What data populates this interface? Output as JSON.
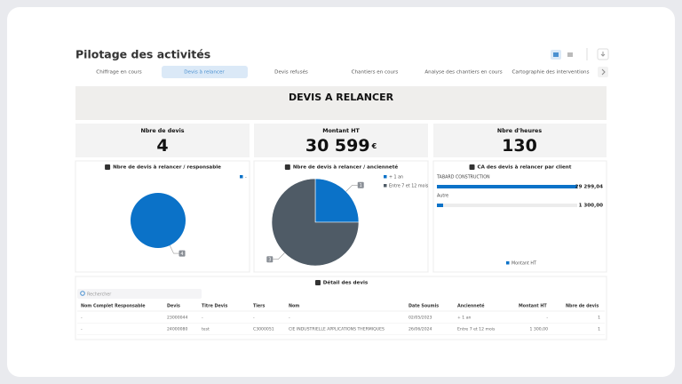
{
  "header": {
    "title": "Pilotage des activités"
  },
  "tabs": [
    "Chiffrage en cours",
    "Devis à relancer",
    "Devis refusés",
    "Chantiers en cours",
    "Analyse des chantiers en cours",
    "Cartographie des interventions"
  ],
  "active_tab": 1,
  "banner": "DEVIS A RELANCER",
  "kpis": [
    {
      "label": "Nbre de devis",
      "value": "4"
    },
    {
      "label": "Montant HT",
      "value": "30 599",
      "unit": "€"
    },
    {
      "label": "Nbre d'heures",
      "value": "130"
    }
  ],
  "chart_data": [
    {
      "type": "pie",
      "title": "Nbre de devis à relancer / responsable",
      "categories": [
        "-"
      ],
      "values": [
        4
      ],
      "colors": [
        "#0b72c8"
      ]
    },
    {
      "type": "pie",
      "title": "Nbre de devis à relancer / ancienneté",
      "categories": [
        "+ 1 an",
        "Entre 7 et 12 mois"
      ],
      "values": [
        1,
        3
      ],
      "colors": [
        "#0b72c8",
        "#4f5b66"
      ]
    },
    {
      "type": "hbar",
      "title": "CA des devis à relancer par client",
      "categories": [
        "TABARD CONSTRUCTION",
        "Autre"
      ],
      "series": [
        {
          "name": "Montant HT",
          "color": "#0b72c8",
          "values": [
            29299.04,
            1300
          ],
          "value_labels": [
            "29 299,04",
            "1 300,00"
          ]
        }
      ]
    }
  ],
  "table": {
    "title": "Détail des devis",
    "search_placeholder": "Rechercher",
    "columns": [
      "Nom Complet Responsable",
      "Devis",
      "Titre Devis",
      "Tiers",
      "Nom",
      "Date Soumis",
      "Ancienneté",
      "Montant HT",
      "Nbre de devis"
    ],
    "rows": [
      [
        "-",
        "23000044",
        "-",
        "-",
        "-",
        "02/05/2023",
        "+ 1 an",
        "-",
        "1"
      ],
      [
        "-",
        "24000080",
        "test",
        "C3000051",
        "CIE INDUSTRIELLE APPLICATIONS THERMIQUES",
        "26/06/2024",
        "Entre 7 et 12 mois",
        "1 300,00",
        "1"
      ]
    ]
  }
}
